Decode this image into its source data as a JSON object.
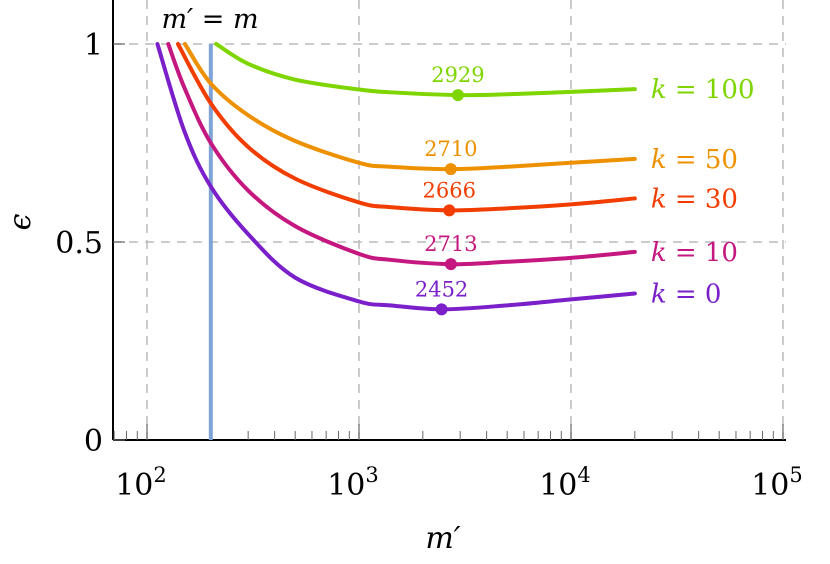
{
  "chart_data": {
    "type": "line",
    "xlabel": "m′",
    "ylabel": "ϵ",
    "xscale": "log",
    "xlim": [
      70,
      105000
    ],
    "ylim": [
      0,
      1.1
    ],
    "grid": true,
    "xticks": [
      100,
      1000,
      10000,
      100000
    ],
    "xtick_labels": [
      {
        "base": "10",
        "exp": "2"
      },
      {
        "base": "10",
        "exp": "3"
      },
      {
        "base": "10",
        "exp": "4"
      },
      {
        "base": "10",
        "exp": "5"
      }
    ],
    "yticks": [
      0,
      0.5,
      1
    ],
    "ytick_labels": [
      "0",
      "0.5",
      "1"
    ],
    "reference_line": {
      "label": "m′ = m",
      "x": 200,
      "color": "#7fa3d6"
    },
    "series": [
      {
        "name": "k = 0",
        "color": "#7a1fc9",
        "x": [
          112,
          150,
          200,
          300,
          500,
          1000,
          1400,
          2452,
          5000,
          10000,
          20000
        ],
        "y": [
          1.0,
          0.78,
          0.64,
          0.52,
          0.41,
          0.35,
          0.34,
          0.33,
          0.34,
          0.355,
          0.37
        ],
        "min": {
          "x": 2452,
          "y": 0.33,
          "label": "2452"
        }
      },
      {
        "name": "k = 10",
        "color": "#c4177f",
        "x": [
          126,
          150,
          200,
          300,
          500,
          1000,
          1400,
          2713,
          5000,
          10000,
          20000
        ],
        "y": [
          1.0,
          0.89,
          0.75,
          0.63,
          0.54,
          0.47,
          0.455,
          0.444,
          0.45,
          0.46,
          0.475
        ],
        "min": {
          "x": 2713,
          "y": 0.444,
          "label": "2713"
        }
      },
      {
        "name": "k = 30",
        "color": "#f23d00",
        "x": [
          140,
          200,
          300,
          500,
          1000,
          1400,
          2666,
          5000,
          10000,
          20000
        ],
        "y": [
          1.0,
          0.85,
          0.74,
          0.66,
          0.6,
          0.588,
          0.58,
          0.585,
          0.595,
          0.61
        ],
        "min": {
          "x": 2666,
          "y": 0.58,
          "label": "2666"
        }
      },
      {
        "name": "k = 50",
        "color": "#ee9100",
        "x": [
          151,
          200,
          300,
          500,
          1000,
          1400,
          2710,
          5000,
          10000,
          20000
        ],
        "y": [
          1.0,
          0.9,
          0.82,
          0.755,
          0.7,
          0.69,
          0.684,
          0.69,
          0.7,
          0.71
        ],
        "min": {
          "x": 2710,
          "y": 0.684,
          "label": "2710"
        }
      },
      {
        "name": "k = 100",
        "color": "#7ed500",
        "x": [
          212,
          300,
          500,
          1000,
          1400,
          2929,
          5000,
          10000,
          20000
        ],
        "y": [
          1.0,
          0.95,
          0.91,
          0.885,
          0.878,
          0.871,
          0.873,
          0.879,
          0.886
        ],
        "min": {
          "x": 2929,
          "y": 0.871,
          "label": "2929"
        }
      }
    ]
  }
}
